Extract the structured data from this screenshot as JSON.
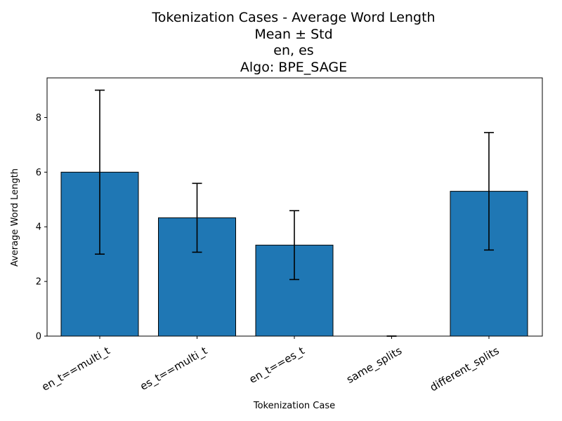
{
  "chart_data": {
    "type": "bar",
    "title_lines": [
      "Tokenization Cases - Average Word Length",
      "Mean ± Std",
      "en, es",
      "Algo: BPE_SAGE"
    ],
    "xlabel": "Tokenization Case",
    "ylabel": "Average Word Length",
    "categories": [
      "en_t==multi_t",
      "es_t==multi_t",
      "en_t==es_t",
      "same_splits",
      "different_splits"
    ],
    "values": [
      6.0,
      4.33,
      3.33,
      0.0,
      5.3
    ],
    "errors": [
      3.0,
      1.26,
      1.26,
      0.0,
      2.15
    ],
    "ylim": [
      0,
      9.45
    ],
    "yticks": [
      0,
      2,
      4,
      6,
      8
    ],
    "bar_color": "#1f77b4",
    "edge_color": "#000000",
    "error_color": "#000000",
    "grid": false,
    "legend": "none"
  }
}
